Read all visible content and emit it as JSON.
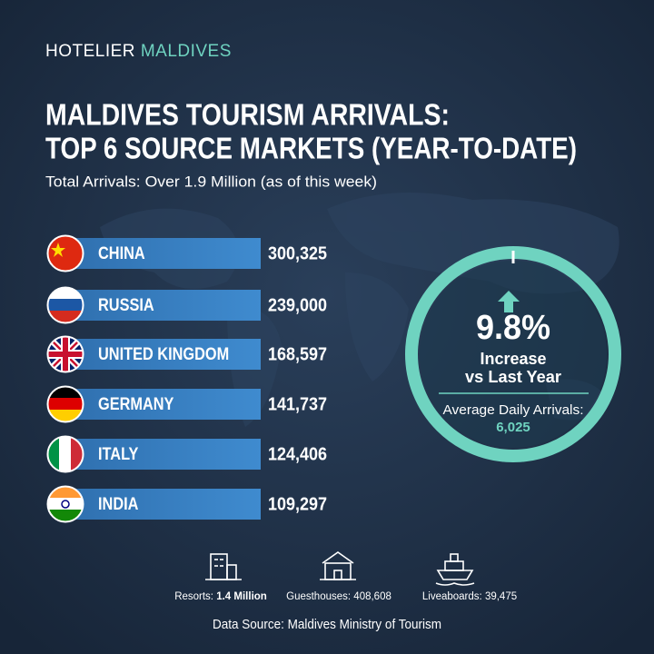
{
  "brand": {
    "part1": "HOTELIER",
    "part2": "MALDIVES"
  },
  "title": {
    "line1": "MALDIVES TOURISM ARRIVALS:",
    "line2": "TOP 6 SOURCE MARKETS (YEAR-TO-DATE)"
  },
  "subtitle": "Total Arrivals: Over 1.9 Million (as of  this week)",
  "markets": [
    {
      "country": "CHINA",
      "arrivals": "300,325"
    },
    {
      "country": "RUSSIA",
      "arrivals": "239,000"
    },
    {
      "country": "UNITED KINGDOM",
      "arrivals": "168,597"
    },
    {
      "country": "GERMANY",
      "arrivals": "141,737"
    },
    {
      "country": "ITALY",
      "arrivals": "124,406"
    },
    {
      "country": "INDIA",
      "arrivals": "109,297"
    }
  ],
  "highlight": {
    "change": "9.8%",
    "label_line1": "Increase",
    "label_line2": "vs Last Year",
    "daily_label": "Average Daily Arrivals:",
    "daily_value": "6,025"
  },
  "stats": [
    {
      "label": "Resorts:",
      "value": "1.4 Million"
    },
    {
      "label": "Guesthouses:",
      "value": "408,608"
    },
    {
      "label": "Liveaboards:",
      "value": "39,475"
    }
  ],
  "source": "Data Source: Maldives Ministry of Tourism"
}
